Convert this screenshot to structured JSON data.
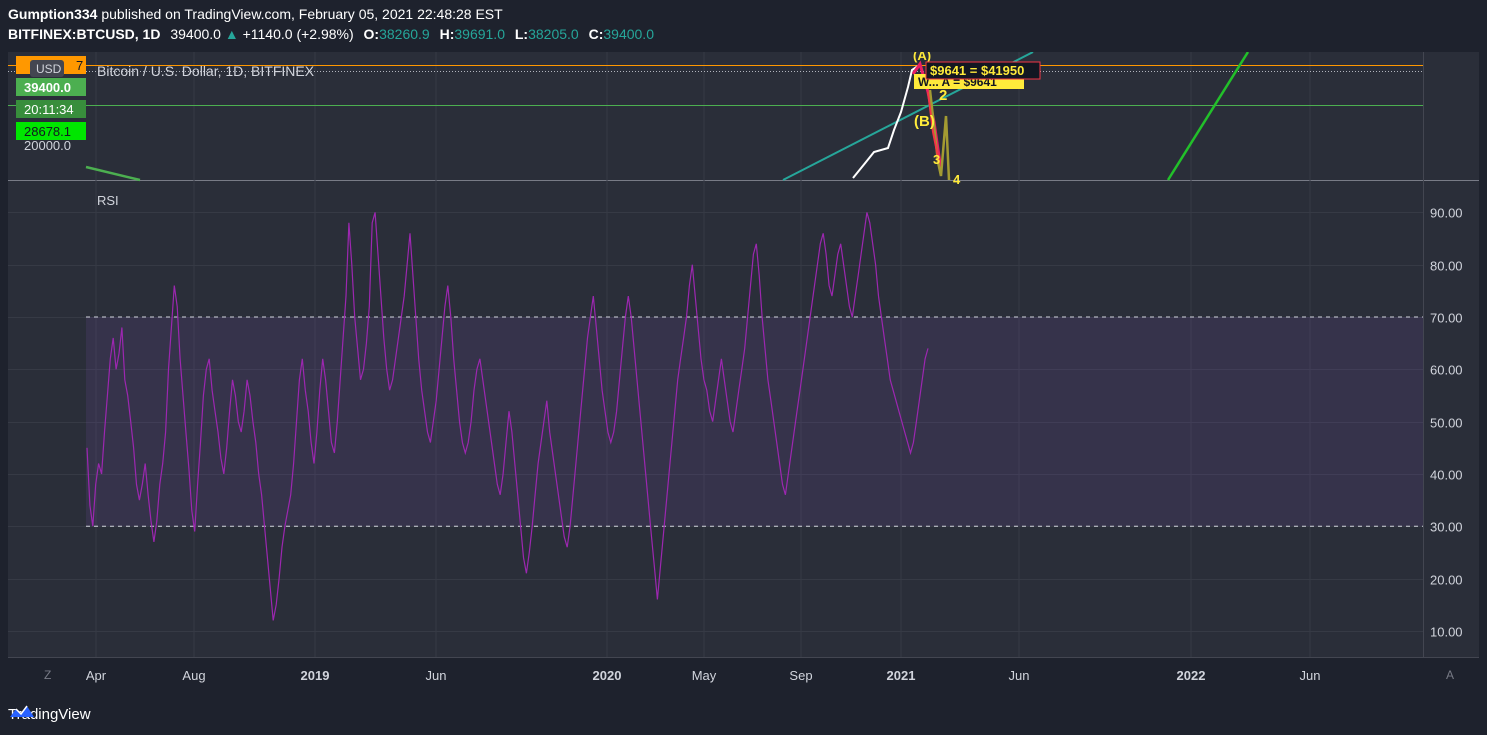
{
  "header": {
    "author": "Gumption334",
    "published_text": "published on TradingView.com, February 05, 2021 22:48:28 EST",
    "symbol": "BITFINEX:BTCUSD, 1D",
    "last": "39400.0",
    "change": "+1140.0 (+2.98%)",
    "o_label": "O:",
    "o": "38260.9",
    "h_label": "H:",
    "h": "39691.0",
    "l_label": "L:",
    "l": "38205.0",
    "c_label": "C:",
    "c": "39400.0"
  },
  "price_pane": {
    "title": "Bitcoin / U.S. Dollar, 1D, BITFINEX",
    "currency": "USD",
    "price_badge": "39400.0",
    "countdown_badge": "20:11:34",
    "green_badge": "28678.1",
    "orange_badge_partial": "7",
    "scale_label": "20000.0",
    "annotation_box": "$9641 = $41950",
    "annotation_partial": "W... A = $9641",
    "wave_labels": [
      "(A)",
      "(B)",
      "2",
      "3",
      "4"
    ]
  },
  "rsi_pane": {
    "title": "RSI",
    "y_ticks": [
      "90.00",
      "80.00",
      "70.00",
      "60.00",
      "50.00",
      "40.00",
      "30.00",
      "20.00",
      "10.00"
    ]
  },
  "x_axis": {
    "labels": [
      {
        "text": "Apr",
        "bold": false
      },
      {
        "text": "Aug",
        "bold": false
      },
      {
        "text": "2019",
        "bold": true
      },
      {
        "text": "Jun",
        "bold": false
      },
      {
        "text": "2020",
        "bold": true
      },
      {
        "text": "May",
        "bold": false
      },
      {
        "text": "Sep",
        "bold": false
      },
      {
        "text": "2021",
        "bold": true
      },
      {
        "text": "Jun",
        "bold": false
      },
      {
        "text": "2022",
        "bold": true
      },
      {
        "text": "Jun",
        "bold": false
      }
    ],
    "left_corner": "Z",
    "right_corner": "A"
  },
  "footer": {
    "brand": "TradingView"
  },
  "colors": {
    "background": "#131722",
    "rsi_line": "#9c27b0",
    "band_fill": "#7e57c2",
    "green_line": "#4caf50",
    "orange_line": "#ff9800",
    "teal_line": "#26a69a"
  },
  "chart_data": {
    "type": "line",
    "series": [
      {
        "values": [
          45,
          34,
          30,
          38,
          42,
          40,
          48,
          55,
          62,
          66,
          60,
          63,
          68,
          58,
          55,
          50,
          45,
          38,
          35,
          38,
          42,
          36,
          31,
          27,
          31,
          38,
          42,
          48,
          60,
          68,
          76,
          72,
          62,
          55,
          48,
          41,
          33,
          29,
          38,
          46,
          55,
          60,
          62,
          56,
          52,
          48,
          43,
          40,
          45,
          52,
          58,
          55,
          50,
          48,
          52,
          58,
          55,
          50,
          46,
          40,
          36,
          30,
          24,
          18,
          12,
          15,
          20,
          26,
          30,
          33,
          36,
          42,
          50,
          58,
          62,
          56,
          52,
          46,
          42,
          48,
          56,
          62,
          58,
          52,
          46,
          44,
          50,
          58,
          66,
          74,
          88,
          80,
          70,
          64,
          58,
          60,
          65,
          72,
          88,
          90,
          82,
          74,
          66,
          60,
          56,
          58,
          62,
          66,
          70,
          74,
          80,
          86,
          78,
          70,
          62,
          56,
          52,
          48,
          46,
          50,
          54,
          60,
          66,
          72,
          76,
          70,
          62,
          56,
          50,
          46,
          44,
          46,
          50,
          56,
          60,
          62,
          58,
          54,
          50,
          46,
          42,
          38,
          36,
          40,
          46,
          52,
          48,
          42,
          36,
          30,
          24,
          21,
          25,
          30,
          36,
          42,
          46,
          50,
          54,
          48,
          44,
          40,
          36,
          32,
          28,
          26,
          30,
          36,
          42,
          48,
          54,
          60,
          66,
          70,
          74,
          68,
          62,
          56,
          52,
          48,
          46,
          48,
          52,
          58,
          64,
          70,
          74,
          70,
          64,
          58,
          52,
          46,
          40,
          34,
          28,
          22,
          16,
          22,
          28,
          34,
          40,
          46,
          52,
          58,
          62,
          66,
          70,
          76,
          80,
          74,
          68,
          62,
          58,
          56,
          52,
          50,
          54,
          58,
          62,
          58,
          54,
          50,
          48,
          52,
          56,
          60,
          64,
          70,
          76,
          82,
          84,
          78,
          70,
          64,
          58,
          54,
          50,
          46,
          42,
          38,
          36,
          40,
          44,
          48,
          52,
          56,
          60,
          64,
          68,
          72,
          76,
          80,
          84,
          86,
          82,
          76,
          74,
          78,
          82,
          84,
          80,
          76,
          72,
          70,
          74,
          78,
          82,
          86,
          90,
          88,
          84,
          80,
          74,
          70,
          66,
          62,
          58,
          56,
          54,
          52,
          50,
          48,
          46,
          44,
          46,
          50,
          54,
          58,
          62,
          64
        ],
        "x_range": [
          "2018-03-20",
          "2021-02-05"
        ]
      }
    ],
    "ylim": [
      5,
      96
    ],
    "y_ticks": [
      90,
      80,
      70,
      60,
      50,
      40,
      30,
      20,
      10
    ],
    "bands": {
      "upper": 70,
      "lower": 30
    },
    "xlabel": "",
    "ylabel": ""
  }
}
